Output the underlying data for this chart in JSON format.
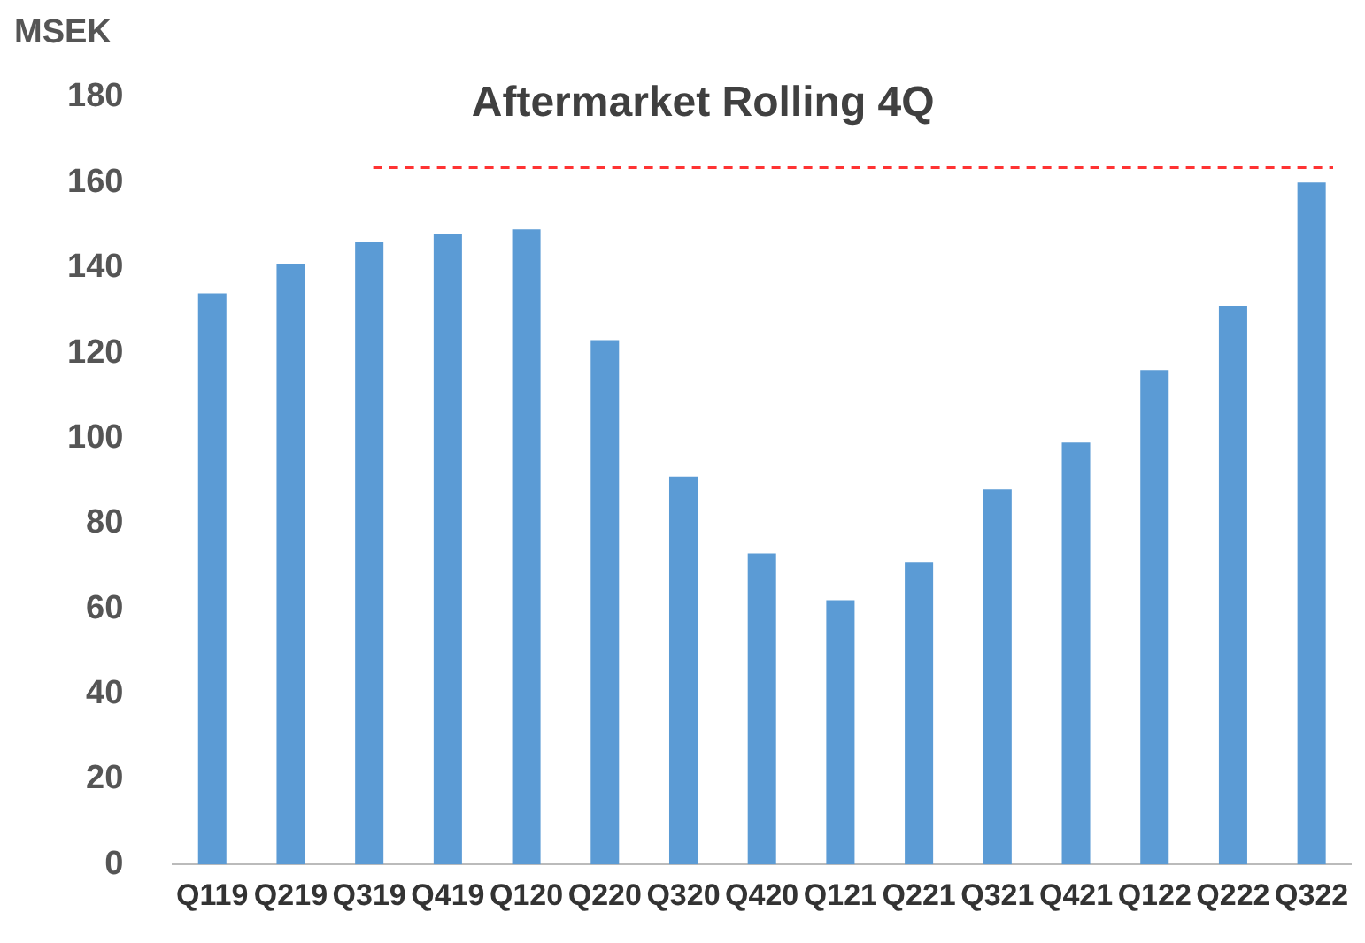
{
  "chart_data": {
    "type": "bar",
    "title": "Aftermarket Rolling 4Q",
    "ylabel": "MSEK",
    "categories": [
      "Q119",
      "Q219",
      "Q319",
      "Q419",
      "Q120",
      "Q220",
      "Q320",
      "Q420",
      "Q121",
      "Q221",
      "Q321",
      "Q421",
      "Q122",
      "Q222",
      "Q322"
    ],
    "values": [
      134,
      141,
      146,
      148,
      149,
      123,
      91,
      73,
      62,
      71,
      88,
      99,
      116,
      131,
      160
    ],
    "color": "#5b9bd5",
    "ylim": [
      0,
      180
    ],
    "yticks": [
      0,
      20,
      40,
      60,
      80,
      100,
      120,
      140,
      160,
      180
    ],
    "grid": false,
    "legend": false,
    "ref_lines": [
      {
        "axis": "y",
        "value": 163.5,
        "color": "#ff3333",
        "line_style": "dashed"
      }
    ]
  }
}
